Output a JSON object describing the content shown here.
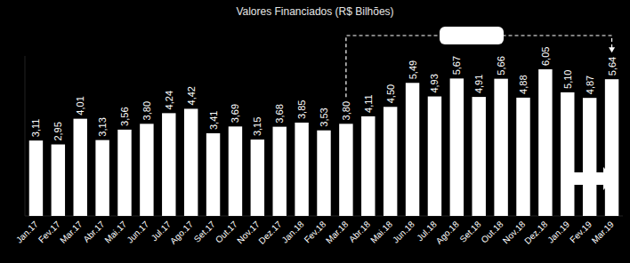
{
  "chart_data": {
    "type": "bar",
    "title": "Valores Financiados (R$ Bilhões)",
    "categories": [
      "Jan.17",
      "Fev.17",
      "Mar.17",
      "Abr.17",
      "Mai.17",
      "Jun.17",
      "Jul.17",
      "Ago.17",
      "Set.17",
      "Out.17",
      "Nov.17",
      "Dez.17",
      "Jan.18",
      "Fev.18",
      "Mar.18",
      "Abr.18",
      "Mai.18",
      "Jun.18",
      "Jul.18",
      "Ago.18",
      "Set.18",
      "Out.18",
      "Nov.18",
      "Dez.18",
      "Jan.19",
      "Fev.19",
      "Mar.19"
    ],
    "values": [
      3.11,
      2.95,
      4.01,
      3.13,
      3.56,
      3.8,
      4.24,
      4.42,
      3.41,
      3.69,
      3.15,
      3.68,
      3.85,
      3.53,
      3.8,
      4.11,
      4.5,
      5.49,
      4.93,
      5.67,
      4.91,
      5.66,
      4.88,
      6.05,
      5.1,
      4.87,
      5.64
    ],
    "value_labels": [
      "3,11",
      "2,95",
      "4,01",
      "3,13",
      "3,56",
      "3,80",
      "4,24",
      "4,42",
      "3,41",
      "3,69",
      "3,15",
      "3,68",
      "3,85",
      "3,53",
      "3,80",
      "4,11",
      "4,50",
      "5,49",
      "4,93",
      "5,67",
      "4,91",
      "5,66",
      "4,88",
      "6,05",
      "5,10",
      "4,87",
      "5,64"
    ],
    "color": "#ffffff",
    "ylim": [
      0,
      6.6
    ],
    "tick_labels": "x",
    "data_labels": true,
    "grid": false
  }
}
